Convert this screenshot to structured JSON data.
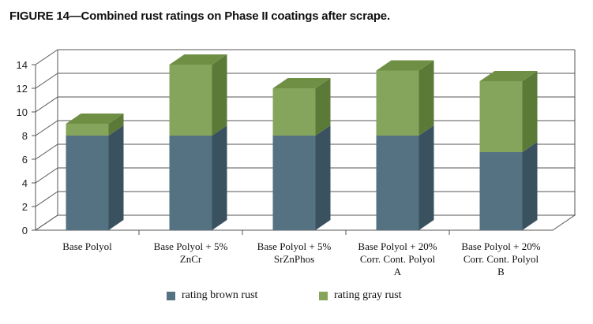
{
  "figure_title": "FIGURE 14—Combined rust ratings on Phase II coatings after scrape.",
  "colors": {
    "brown_front": "#557283",
    "brown_side": "#3a5260",
    "brown_top": "#46606f",
    "gray_front": "#86a55c",
    "gray_side": "#5b7a38",
    "gray_top": "#6f8f45",
    "grid": "#555555"
  },
  "chart_data": {
    "type": "bar",
    "stacked": true,
    "three_d": true,
    "categories": [
      [
        "Base Polyol"
      ],
      [
        "Base Polyol + 5%",
        "ZnCr"
      ],
      [
        "Base Polyol + 5%",
        "SrZnPhos"
      ],
      [
        "Base Polyol + 20%",
        "Corr. Cont. Polyol",
        "A"
      ],
      [
        "Base Polyol + 20%",
        "Corr. Cont. Polyol",
        "B"
      ]
    ],
    "series": [
      {
        "name": "rating brown rust",
        "values": [
          8,
          8,
          8,
          8,
          6.6
        ]
      },
      {
        "name": "rating gray rust",
        "values": [
          1,
          6,
          4,
          5.5,
          6
        ]
      }
    ],
    "yticks": [
      0,
      2,
      4,
      6,
      8,
      10,
      12,
      14
    ],
    "ylim": [
      0,
      14
    ],
    "grid": true,
    "legend_position": "bottom"
  }
}
